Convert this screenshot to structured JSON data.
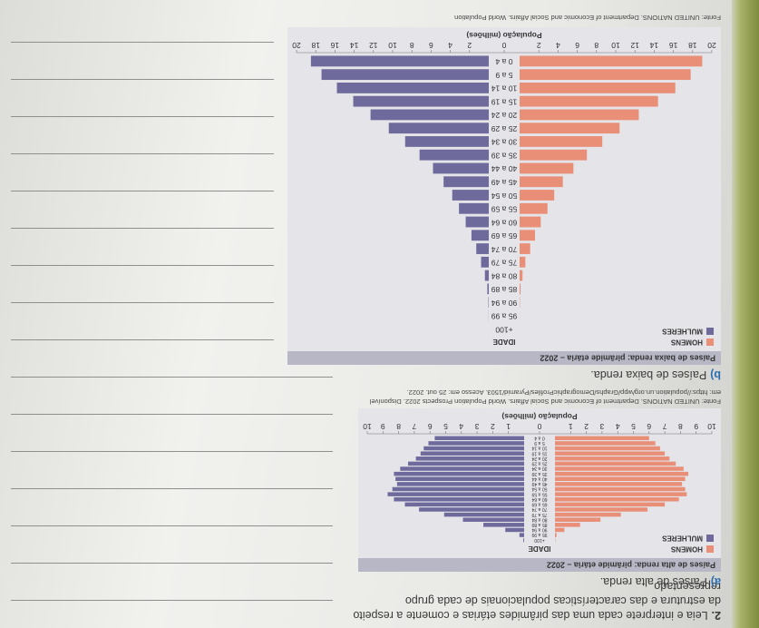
{
  "question": {
    "number": "2.",
    "text": "Leia e interprete cada uma das pirâmides etárias e comente a respeito da estrutura e das características populacionais de cada grupo representado."
  },
  "items": [
    {
      "label": "a)",
      "text": "Países de alta renda."
    },
    {
      "label": "b)",
      "text": "Países de baixa renda."
    }
  ],
  "chart_data": [
    {
      "type": "pyramid",
      "title": "Países de alta renda: pirâmide etária – 2022",
      "y_label": "IDADE",
      "x_label": "População (milhões)",
      "categories": [
        "0 a 4",
        "5 a 9",
        "10 a 14",
        "15 a 19",
        "20 a 24",
        "25 a 29",
        "30 a 34",
        "35 a 39",
        "40 a 44",
        "45 a 49",
        "50 a 54",
        "55 a 59",
        "60 a 64",
        "65 a 69",
        "70 a 74",
        "75 a 79",
        "80 a 84",
        "85 a 89",
        "90 a 94",
        "95 a 99",
        "+100"
      ],
      "series": [
        {
          "name": "HOMENS",
          "color": "#e98f78",
          "values": [
            6.0,
            6.4,
            6.7,
            7.0,
            7.3,
            7.7,
            8.2,
            8.5,
            8.3,
            8.1,
            8.3,
            8.4,
            7.9,
            7.0,
            5.9,
            4.2,
            2.9,
            1.6,
            0.6,
            0.1,
            0.02
          ]
        },
        {
          "name": "MULHERES",
          "color": "#6e6a9c",
          "values": [
            5.7,
            6.1,
            6.4,
            6.6,
            6.9,
            7.4,
            7.9,
            8.3,
            8.2,
            8.1,
            8.4,
            8.7,
            8.3,
            7.6,
            6.7,
            5.1,
            3.9,
            2.6,
            1.2,
            0.3,
            0.05
          ]
        }
      ],
      "xlim": [
        0,
        10
      ],
      "xticks": [
        0,
        1,
        2,
        3,
        4,
        5,
        6,
        7,
        8,
        9,
        10
      ],
      "source": "Fonte: UNITED NATIONS. Department of Economic and Social Affairs. World Population Prospects 2022. Disponível em: https://population.un.org/wpp/Graphs/DemographicProfiles/Pyramid/1503. Acesso em: 25 out. 2022."
    },
    {
      "type": "pyramid",
      "title": "Países de baixa renda: pirâmide etária – 2022",
      "y_label": "IDADE",
      "x_label": "População (milhões)",
      "categories": [
        "0 a 4",
        "5 a 9",
        "10 a 14",
        "15 a 19",
        "20 a 24",
        "25 a 29",
        "30 a 34",
        "35 a 39",
        "40 a 44",
        "45 a 49",
        "50 a 54",
        "55 a 59",
        "60 a 64",
        "65 a 69",
        "70 a 74",
        "75 a 79",
        "80 a 84",
        "85 a 89",
        "90 a 94",
        "95 a 99",
        "+100"
      ],
      "series": [
        {
          "name": "HOMENS",
          "color": "#e98f78",
          "values": [
            19.0,
            17.8,
            16.2,
            14.4,
            12.4,
            10.4,
            8.6,
            7.0,
            5.6,
            4.5,
            3.6,
            2.9,
            2.2,
            1.6,
            1.1,
            0.6,
            0.3,
            0.1,
            0.03,
            0.005,
            0
          ]
        },
        {
          "name": "MULHERES",
          "color": "#6e6a9c",
          "values": [
            18.5,
            17.4,
            15.8,
            14.1,
            12.3,
            10.4,
            8.7,
            7.2,
            5.8,
            4.7,
            3.8,
            3.1,
            2.4,
            1.8,
            1.3,
            0.8,
            0.4,
            0.15,
            0.04,
            0.01,
            0
          ]
        }
      ],
      "xlim": [
        0,
        20
      ],
      "xticks": [
        0,
        2,
        4,
        6,
        8,
        10,
        12,
        14,
        16,
        18,
        20
      ],
      "source": "Fonte: UNITED NATIONS. Department of Economic and Social Affairs. World Population"
    }
  ]
}
